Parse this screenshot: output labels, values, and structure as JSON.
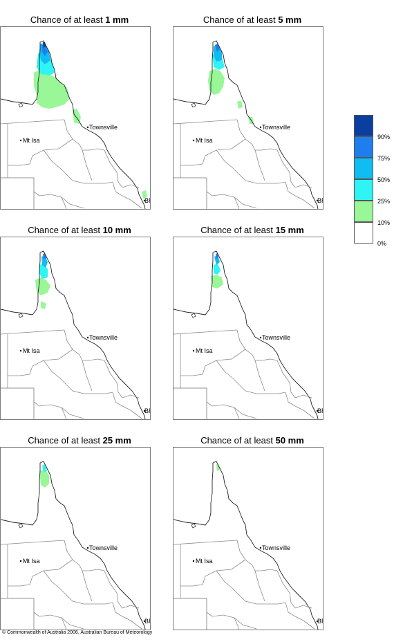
{
  "panels": [
    {
      "title_prefix": "Chance of at least ",
      "amount": "1 mm"
    },
    {
      "title_prefix": "Chance of at least ",
      "amount": "5 mm"
    },
    {
      "title_prefix": "Chance of at least ",
      "amount": "10 mm"
    },
    {
      "title_prefix": "Chance of at least ",
      "amount": "15 mm"
    },
    {
      "title_prefix": "Chance of at least ",
      "amount": "25 mm"
    },
    {
      "title_prefix": "Chance of at least ",
      "amount": "50 mm"
    }
  ],
  "map_labels": {
    "townsville": "Townsville",
    "mt_isa": "Mt Isa",
    "brisbane": "BRIS"
  },
  "legend": {
    "classes": [
      {
        "color": "#0a3fa0",
        "label": ""
      },
      {
        "color": "#1e7ef0",
        "label": "90%"
      },
      {
        "color": "#10bdf2",
        "label": "75%"
      },
      {
        "color": "#30f4f4",
        "label": "50%"
      },
      {
        "color": "#99f798",
        "label": "25%"
      },
      {
        "color": "#ffffff",
        "label": "10%"
      }
    ],
    "bottom_label": "0%"
  },
  "copyright": "© Commonwealth of Australia 2006, Australian Bureau of Meteorology"
}
